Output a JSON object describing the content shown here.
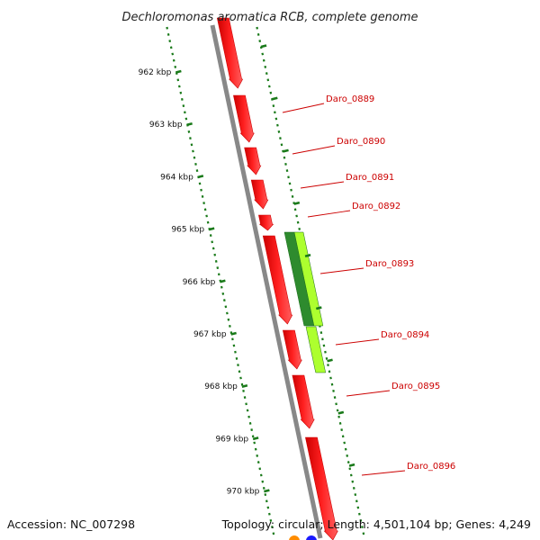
{
  "title": "Dechloromonas aromatica RCB, complete genome",
  "accession": "Accession: NC_007298",
  "summary": "Topology: circular; Length: 4,501,104 bp; Genes: 4,249",
  "colors": {
    "backbone": "#888888",
    "gene_forward": "#ff0000",
    "gene_dark_green": "#2e8b2e",
    "gene_light_green": "#adff2f",
    "label": "#cc0000",
    "tick": "#1a7a1a"
  },
  "ticks": [
    "962 kbp",
    "963 kbp",
    "964 kbp",
    "965 kbp",
    "966 kbp",
    "967 kbp",
    "968 kbp",
    "969 kbp",
    "970 kbp"
  ],
  "genes": [
    {
      "label": "Daro_0889",
      "lane": "inner",
      "color": "gene_forward"
    },
    {
      "label": "Daro_0890",
      "lane": "inner",
      "color": "gene_forward"
    },
    {
      "label": "Daro_0891",
      "lane": "inner",
      "color": "gene_forward"
    },
    {
      "label": "Daro_0892",
      "lane": "inner",
      "color": "gene_forward"
    },
    {
      "label": "Daro_0893",
      "lane": "inner",
      "color": "gene_forward"
    },
    {
      "label": "Daro_0894",
      "lane": "inner",
      "color": "gene_forward"
    },
    {
      "label": "Daro_0895",
      "lane": "inner",
      "color": "gene_forward"
    },
    {
      "label": "Daro_0896",
      "lane": "inner",
      "color": "gene_forward"
    }
  ],
  "green_features": [
    {
      "color": "gene_dark_green"
    },
    {
      "color": "gene_light_green"
    },
    {
      "color": "gene_light_green"
    }
  ]
}
